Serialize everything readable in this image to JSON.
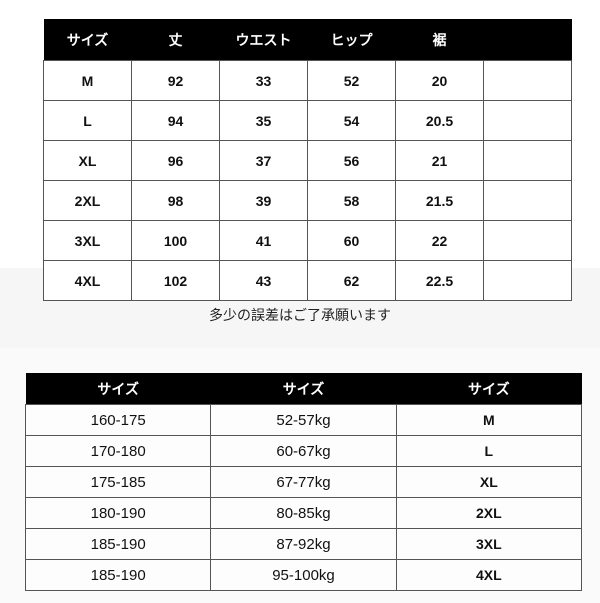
{
  "measurements": {
    "headers": [
      "サイズ",
      "丈",
      "ウエスト",
      "ヒップ",
      "裾",
      ""
    ],
    "rows": [
      [
        "M",
        "92",
        "33",
        "52",
        "20",
        ""
      ],
      [
        "L",
        "94",
        "35",
        "54",
        "20.5",
        ""
      ],
      [
        "XL",
        "96",
        "37",
        "56",
        "21",
        ""
      ],
      [
        "2XL",
        "98",
        "39",
        "58",
        "21.5",
        ""
      ],
      [
        "3XL",
        "100",
        "41",
        "60",
        "22",
        ""
      ],
      [
        "4XL",
        "102",
        "43",
        "62",
        "22.5",
        ""
      ]
    ]
  },
  "note": "多少の誤差はご了承願います",
  "guide": {
    "headers": [
      "サイズ",
      "サイズ",
      "サイズ"
    ],
    "rows": [
      [
        "160-175",
        "52-57kg",
        "M"
      ],
      [
        "170-180",
        "60-67kg",
        "L"
      ],
      [
        "175-185",
        "67-77kg",
        "XL"
      ],
      [
        "180-190",
        "80-85kg",
        "2XL"
      ],
      [
        "185-190",
        "87-92kg",
        "3XL"
      ],
      [
        "185-190",
        "95-100kg",
        "4XL"
      ]
    ]
  }
}
